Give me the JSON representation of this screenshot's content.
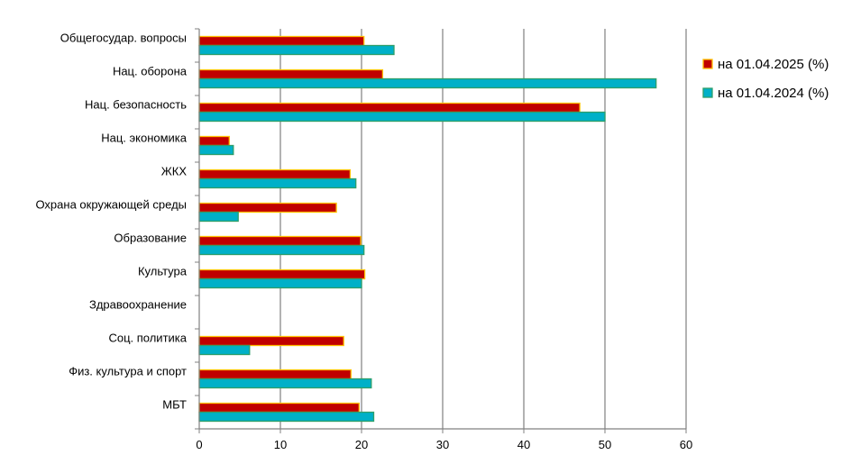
{
  "chart_data": {
    "type": "bar",
    "orientation": "horizontal",
    "categories": [
      "Общегосудар. вопросы",
      "Нац. оборона",
      "Нац. безопасность",
      "Нац. экономика",
      "ЖКХ",
      "Охрана окружающей среды",
      "Образование",
      "Культура",
      "Здравоохранение",
      "Соц. политика",
      "Физ. культура и спорт",
      "МБТ"
    ],
    "series": [
      {
        "name": "на 01.04.2025 (%)",
        "color": "#C00000",
        "border": "#FFC000",
        "values": [
          20.3,
          22.6,
          46.9,
          3.7,
          18.6,
          16.9,
          19.9,
          20.4,
          null,
          17.8,
          18.7,
          19.7
        ]
      },
      {
        "name": "на 01.04.2024 (%)",
        "color": "#00B0C8",
        "border": "#2E9E6A",
        "values": [
          24.0,
          56.3,
          50.0,
          4.2,
          19.3,
          4.8,
          20.3,
          20.0,
          null,
          6.2,
          21.2,
          21.5
        ]
      }
    ],
    "xlim": [
      0,
      60
    ],
    "xticks": [
      0,
      10,
      20,
      30,
      40,
      50,
      60
    ],
    "grid": "vertical",
    "legend": "right"
  }
}
